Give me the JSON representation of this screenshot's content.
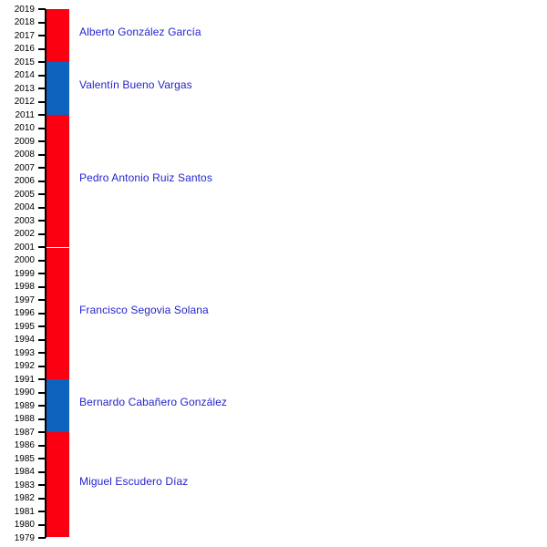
{
  "chart_data": {
    "type": "bar",
    "subtype": "vertical-timeline-of-officeholders",
    "title": "",
    "axis": {
      "unit": "year",
      "min": 1979,
      "max": 2019,
      "tick_step": 1,
      "ticks": [
        "2019",
        "2018",
        "2017",
        "2016",
        "2015",
        "2014",
        "2013",
        "2012",
        "2011",
        "2010",
        "2009",
        "2008",
        "2007",
        "2006",
        "2005",
        "2004",
        "2003",
        "2002",
        "2001",
        "2000",
        "1999",
        "1998",
        "1997",
        "1996",
        "1995",
        "1994",
        "1993",
        "1992",
        "1991",
        "1990",
        "1989",
        "1988",
        "1987",
        "1986",
        "1985",
        "1984",
        "1983",
        "1982",
        "1981",
        "1980",
        "1979"
      ]
    },
    "colors": {
      "red": "#FA0010",
      "blue": "#0D63BE",
      "name_text": "#2525CC",
      "year_text": "#000000",
      "axis": "#000000",
      "divider": "#FFFFFF",
      "background": "#FFFFFF"
    },
    "legend": null,
    "grid": false,
    "segments": [
      {
        "label": "Alberto González García",
        "start_year": 2015,
        "end_year": 2019,
        "color": "red"
      },
      {
        "label": "Valentín Bueno Vargas",
        "start_year": 2011,
        "end_year": 2015,
        "color": "blue"
      },
      {
        "label": "Pedro Antonio Ruiz Santos",
        "start_year": 2001,
        "end_year": 2011,
        "color": "red"
      },
      {
        "label": "Francisco Segovia Solana",
        "start_year": 1991,
        "end_year": 2001,
        "color": "red"
      },
      {
        "label": "Bernardo Cabañero González",
        "start_year": 1987,
        "end_year": 1991,
        "color": "blue"
      },
      {
        "label": "Miguel Escudero Díaz",
        "start_year": 1979,
        "end_year": 1987,
        "color": "red"
      }
    ]
  }
}
